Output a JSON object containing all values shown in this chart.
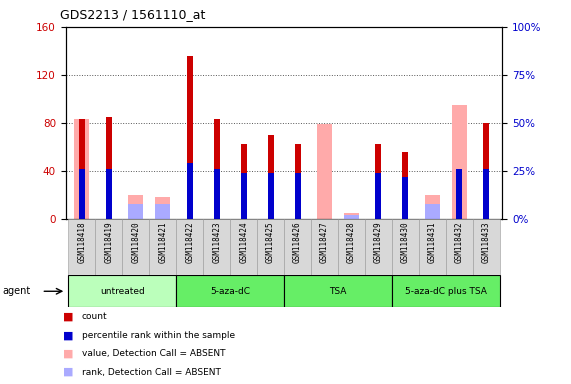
{
  "title": "GDS2213 / 1561110_at",
  "samples": [
    "GSM118418",
    "GSM118419",
    "GSM118420",
    "GSM118421",
    "GSM118422",
    "GSM118423",
    "GSM118424",
    "GSM118425",
    "GSM118426",
    "GSM118427",
    "GSM118428",
    "GSM118429",
    "GSM118430",
    "GSM118431",
    "GSM118432",
    "GSM118433"
  ],
  "count_values": [
    83,
    85,
    null,
    null,
    136,
    83,
    62,
    70,
    62,
    null,
    null,
    62,
    56,
    null,
    null,
    80
  ],
  "pink_bar": [
    83,
    null,
    20,
    18,
    null,
    null,
    null,
    null,
    null,
    79,
    5,
    null,
    null,
    20,
    95,
    null
  ],
  "percentile_present": [
    26,
    26,
    null,
    null,
    29,
    26,
    24,
    24,
    24,
    null,
    null,
    24,
    22,
    null,
    26,
    26
  ],
  "percentile_absent": [
    null,
    null,
    8,
    8,
    null,
    null,
    null,
    null,
    null,
    null,
    2,
    null,
    null,
    8,
    null,
    null
  ],
  "ylim_left": [
    0,
    160
  ],
  "ylim_right": [
    0,
    100
  ],
  "yticks_left": [
    0,
    40,
    80,
    120,
    160
  ],
  "yticks_right": [
    0,
    25,
    50,
    75,
    100
  ],
  "count_color": "#cc0000",
  "absent_pink_color": "#ffaaaa",
  "percentile_color": "#0000cc",
  "percentile_absent_color": "#aaaaff",
  "grid_color": "#555555",
  "bg_color": "#ffffff",
  "ylabel_left_color": "#cc0000",
  "ylabel_right_color": "#0000cc",
  "group_defs": [
    {
      "label": "untreated",
      "start": 0,
      "end": 3,
      "color": "#bbffbb"
    },
    {
      "label": "5-aza-dC",
      "start": 4,
      "end": 7,
      "color": "#66ee66"
    },
    {
      "label": "TSA",
      "start": 8,
      "end": 11,
      "color": "#66ee66"
    },
    {
      "label": "5-aza-dC plus TSA",
      "start": 12,
      "end": 15,
      "color": "#66ee66"
    }
  ],
  "legend_items": [
    {
      "color": "#cc0000",
      "label": "count"
    },
    {
      "color": "#0000cc",
      "label": "percentile rank within the sample"
    },
    {
      "color": "#ffaaaa",
      "label": "value, Detection Call = ABSENT"
    },
    {
      "color": "#aaaaff",
      "label": "rank, Detection Call = ABSENT"
    }
  ]
}
